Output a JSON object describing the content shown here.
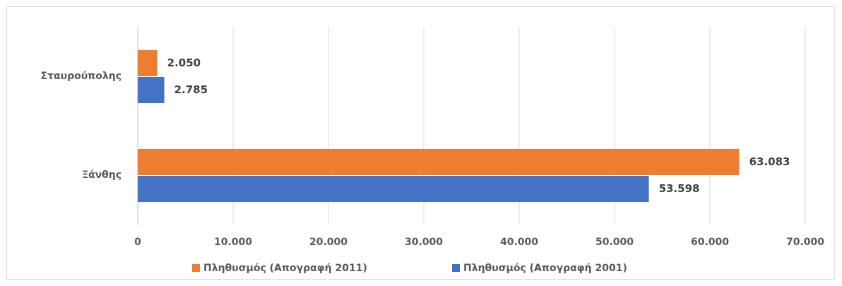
{
  "chart_data": {
    "type": "bar",
    "orientation": "horizontal",
    "categories": [
      "Σταυρούπολης",
      "Ξάνθης"
    ],
    "series": [
      {
        "name": "Πληθυσμός (Απογραφή 2011)",
        "color": "#ed7d31",
        "values": [
          2050,
          63083
        ],
        "value_labels": [
          "2.050",
          "63.083"
        ]
      },
      {
        "name": "Πληθυσμός (Απογραφή 2001)",
        "color": "#4472c4",
        "values": [
          2785,
          53598
        ],
        "value_labels": [
          "2.785",
          "53.598"
        ]
      }
    ],
    "xlim": [
      0,
      70000
    ],
    "xticks": [
      0,
      {
        "value": 10000,
        "label": "10.000"
      },
      {
        "value": 20000,
        "label": "20.000"
      },
      {
        "value": 30000,
        "label": "30.000"
      },
      {
        "value": 40000,
        "label": "40.000"
      },
      {
        "value": 50000,
        "label": "50.000"
      },
      {
        "value": 60000,
        "label": "60.000"
      },
      {
        "value": 70000,
        "label": "70.000"
      }
    ],
    "grid": true,
    "legend": "bottom"
  }
}
